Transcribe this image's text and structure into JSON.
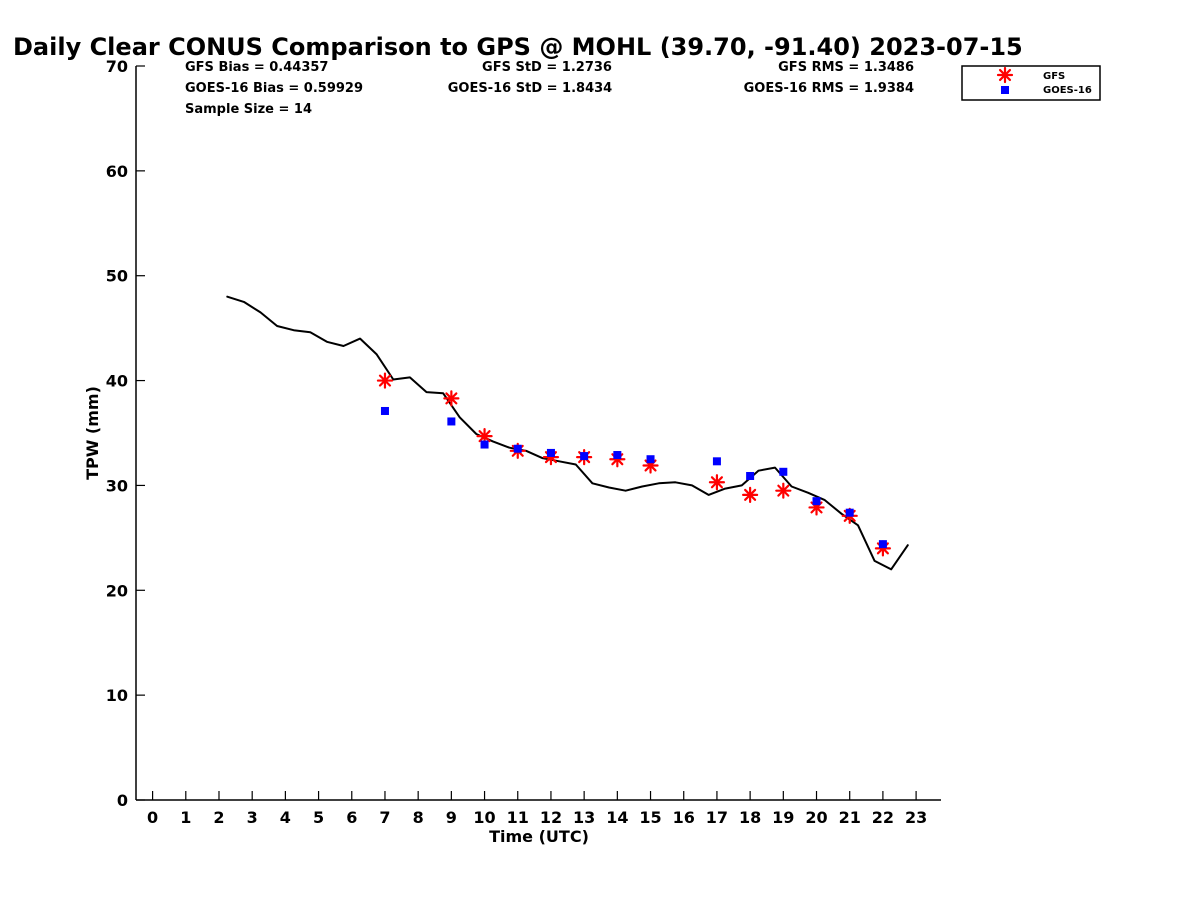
{
  "chart_data": {
    "type": "line",
    "title": "Daily Clear CONUS Comparison to GPS @ MOHL (39.70, -91.40) 2023-07-15",
    "xlabel": "Time (UTC)",
    "ylabel": "TPW (mm)",
    "xlim": [
      -0.5,
      23.75
    ],
    "ylim": [
      0,
      70
    ],
    "x_ticks": [
      0,
      1,
      2,
      3,
      4,
      5,
      6,
      7,
      8,
      9,
      10,
      11,
      12,
      13,
      14,
      15,
      16,
      17,
      18,
      19,
      20,
      21,
      22,
      23
    ],
    "x_tick_labels": [
      "0",
      "1",
      "2",
      "3",
      "4",
      "5",
      "6",
      "7",
      "8",
      "9",
      "10",
      "11",
      "12",
      "13",
      "14",
      "15",
      "16",
      "17",
      "18",
      "19",
      "20",
      "21",
      "22",
      "23"
    ],
    "y_ticks": [
      0,
      10,
      20,
      30,
      40,
      50,
      60,
      70
    ],
    "y_tick_labels": [
      "0",
      "10",
      "20",
      "30",
      "40",
      "50",
      "60",
      "70"
    ],
    "grid": false,
    "legend_position": "top-right, outside plot",
    "series": [
      {
        "name": "",
        "kind": "line",
        "color": "#000000",
        "x": [
          2.25,
          2.75,
          3.25,
          3.75,
          4.25,
          4.75,
          5.25,
          5.75,
          6.25,
          6.75,
          7.25,
          7.75,
          8.25,
          8.75,
          9.25,
          9.75,
          10.25,
          10.75,
          11.25,
          11.75,
          12.25,
          12.75,
          13.25,
          13.75,
          14.25,
          14.75,
          15.25,
          15.75,
          16.25,
          16.75,
          17.25,
          17.75,
          18.25,
          18.75,
          19.25,
          19.75,
          20.25,
          20.75,
          21.25,
          21.75,
          22.25,
          22.75
        ],
        "y": [
          48.0,
          47.5,
          46.5,
          45.2,
          44.8,
          44.6,
          43.7,
          43.3,
          44.0,
          42.5,
          40.1,
          40.3,
          38.9,
          38.8,
          36.5,
          34.9,
          34.2,
          33.6,
          33.3,
          32.6,
          32.3,
          32.0,
          30.2,
          29.8,
          29.5,
          29.9,
          30.2,
          30.3,
          30.0,
          29.1,
          29.7,
          30.0,
          31.4,
          31.7,
          29.9,
          29.3,
          28.6,
          27.3,
          26.2,
          22.8,
          22.0,
          24.3
        ]
      },
      {
        "name": "GFS",
        "kind": "scatter",
        "marker": "asterisk",
        "color": "#ff0000",
        "x": [
          7,
          9,
          10,
          11,
          12,
          13,
          14,
          15,
          17,
          18,
          19,
          20,
          21,
          22
        ],
        "y": [
          40.0,
          38.3,
          34.7,
          33.3,
          32.7,
          32.7,
          32.5,
          31.9,
          30.3,
          29.1,
          29.5,
          27.9,
          27.1,
          24.0
        ]
      },
      {
        "name": "GOES-16",
        "kind": "scatter",
        "marker": "square",
        "color": "#0000ff",
        "x": [
          7,
          9,
          10,
          11,
          12,
          13,
          14,
          15,
          17,
          18,
          19,
          20,
          21,
          22
        ],
        "y": [
          37.1,
          36.1,
          33.9,
          33.5,
          33.1,
          32.8,
          32.9,
          32.5,
          32.3,
          30.9,
          31.3,
          28.5,
          27.4,
          24.4
        ]
      }
    ],
    "stats": {
      "gfs_bias": "GFS Bias = 0.44357",
      "gfs_std": "GFS StD = 1.2736",
      "gfs_rms": "GFS RMS = 1.3486",
      "goes_bias": "GOES-16 Bias = 0.59929",
      "goes_std": "GOES-16 StD = 1.8434",
      "goes_rms": "GOES-16 RMS = 1.9384",
      "sample_size": "Sample Size = 14"
    },
    "legend": {
      "gfs_label": "GFS",
      "goes_label": "GOES-16"
    }
  }
}
